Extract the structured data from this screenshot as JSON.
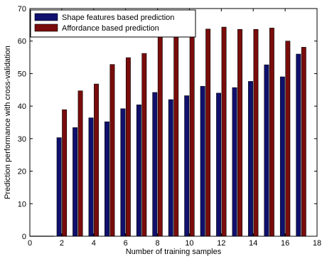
{
  "chart_data": {
    "type": "bar",
    "xlabel": "Number of training samples",
    "ylabel": "Prediction performance with cross-validation",
    "xlim": [
      0,
      18
    ],
    "ylim": [
      0,
      70
    ],
    "xticks": [
      0,
      2,
      4,
      6,
      8,
      10,
      12,
      14,
      16,
      18
    ],
    "yticks": [
      0,
      10,
      20,
      30,
      40,
      50,
      60,
      70
    ],
    "x": [
      2,
      3,
      4,
      5,
      6,
      7,
      8,
      9,
      10,
      11,
      12,
      13,
      14,
      15,
      16,
      17
    ],
    "grid": false,
    "legend_position": "top-left",
    "series": [
      {
        "name": "Shape features based prediction",
        "color": "#10106f",
        "values": [
          30.3,
          33.4,
          36.4,
          35.2,
          39.2,
          40.4,
          44.2,
          42.0,
          43.2,
          46.1,
          44.0,
          45.7,
          47.6,
          52.7,
          49.0,
          56.0
        ]
      },
      {
        "name": "Affordance based prediction",
        "color": "#7a0c0c",
        "values": [
          38.9,
          44.7,
          46.8,
          52.8,
          54.9,
          56.2,
          61.5,
          61.2,
          61.6,
          63.7,
          64.3,
          63.6,
          63.6,
          64.0,
          60.0,
          58.1
        ]
      }
    ]
  }
}
